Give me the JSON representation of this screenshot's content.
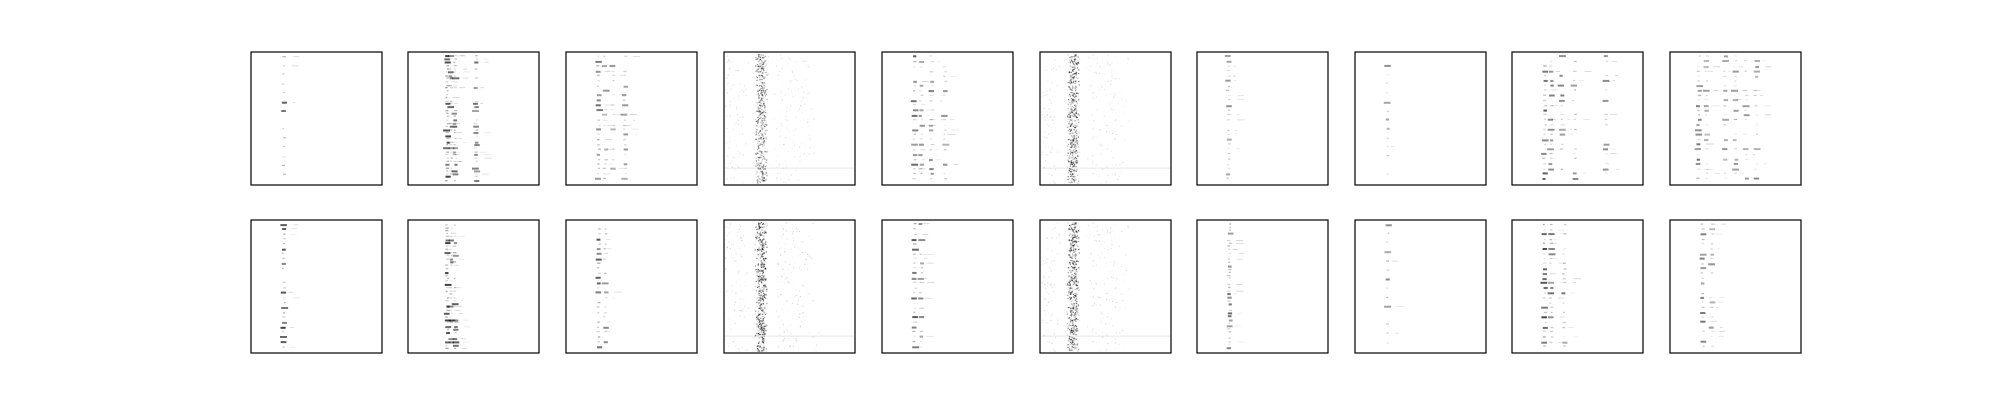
{
  "figure": {
    "rows": 2,
    "cols": 10,
    "background": "#ffffff",
    "frame_color": "#000000",
    "mark_color": "#000000"
  },
  "chart_data": {
    "type": "heatmap",
    "colormap": "gray_r",
    "axes_visible": false,
    "grid": false,
    "panels": [
      {
        "row": 0,
        "col": 0,
        "pattern": "single-column",
        "columns": [
          0.25
        ],
        "density": "sparse",
        "intensity": 0.7
      },
      {
        "row": 0,
        "col": 1,
        "pattern": "column-cluster",
        "columns": [
          0.3,
          0.33,
          0.36,
          0.52
        ],
        "density": "dense",
        "intensity": 0.8
      },
      {
        "row": 0,
        "col": 2,
        "pattern": "column-cluster",
        "columns": [
          0.25,
          0.3,
          0.36,
          0.45
        ],
        "density": "medium",
        "intensity": 0.6
      },
      {
        "row": 0,
        "col": 3,
        "pattern": "diffuse-band",
        "columns": [
          0.2,
          0.28
        ],
        "density": "noisy",
        "intensity": 0.55
      },
      {
        "row": 0,
        "col": 4,
        "pattern": "column-cluster",
        "columns": [
          0.25,
          0.3,
          0.38,
          0.48
        ],
        "density": "medium",
        "intensity": 0.65
      },
      {
        "row": 0,
        "col": 5,
        "pattern": "diffuse-band",
        "columns": [
          0.1,
          0.25
        ],
        "density": "noisy",
        "intensity": 0.6
      },
      {
        "row": 0,
        "col": 6,
        "pattern": "single-column",
        "columns": [
          0.24
        ],
        "density": "medium",
        "intensity": 0.5
      },
      {
        "row": 0,
        "col": 7,
        "pattern": "single-column",
        "columns": [
          0.25
        ],
        "density": "sparse",
        "intensity": 0.45
      },
      {
        "row": 0,
        "col": 8,
        "pattern": "column-cluster",
        "columns": [
          0.25,
          0.3,
          0.38,
          0.48,
          0.72
        ],
        "density": "medium",
        "intensity": 0.7
      },
      {
        "row": 0,
        "col": 9,
        "pattern": "column-cluster",
        "columns": [
          0.22,
          0.28,
          0.42,
          0.5,
          0.58,
          0.66
        ],
        "density": "medium",
        "intensity": 0.55
      },
      {
        "row": 1,
        "col": 0,
        "pattern": "single-column",
        "columns": [
          0.25
        ],
        "density": "medium",
        "intensity": 0.75
      },
      {
        "row": 1,
        "col": 1,
        "pattern": "column-cluster",
        "columns": [
          0.3,
          0.33,
          0.36
        ],
        "density": "dense",
        "intensity": 0.85
      },
      {
        "row": 1,
        "col": 2,
        "pattern": "column-cluster",
        "columns": [
          0.25,
          0.3
        ],
        "density": "medium",
        "intensity": 0.7
      },
      {
        "row": 1,
        "col": 3,
        "pattern": "diffuse-band",
        "columns": [
          0.2,
          0.28
        ],
        "density": "noisy",
        "intensity": 0.7
      },
      {
        "row": 1,
        "col": 4,
        "pattern": "column-cluster",
        "columns": [
          0.25,
          0.3
        ],
        "density": "medium",
        "intensity": 0.7
      },
      {
        "row": 1,
        "col": 5,
        "pattern": "diffuse-band",
        "columns": [
          0.12,
          0.25
        ],
        "density": "noisy",
        "intensity": 0.65
      },
      {
        "row": 1,
        "col": 6,
        "pattern": "single-column",
        "columns": [
          0.25
        ],
        "density": "dense",
        "intensity": 0.6
      },
      {
        "row": 1,
        "col": 7,
        "pattern": "single-column",
        "columns": [
          0.25
        ],
        "density": "sparse",
        "intensity": 0.5
      },
      {
        "row": 1,
        "col": 8,
        "pattern": "column-cluster",
        "columns": [
          0.25,
          0.3,
          0.4
        ],
        "density": "medium",
        "intensity": 0.75
      },
      {
        "row": 1,
        "col": 9,
        "pattern": "column-cluster",
        "columns": [
          0.25,
          0.32
        ],
        "density": "medium",
        "intensity": 0.55
      }
    ]
  }
}
